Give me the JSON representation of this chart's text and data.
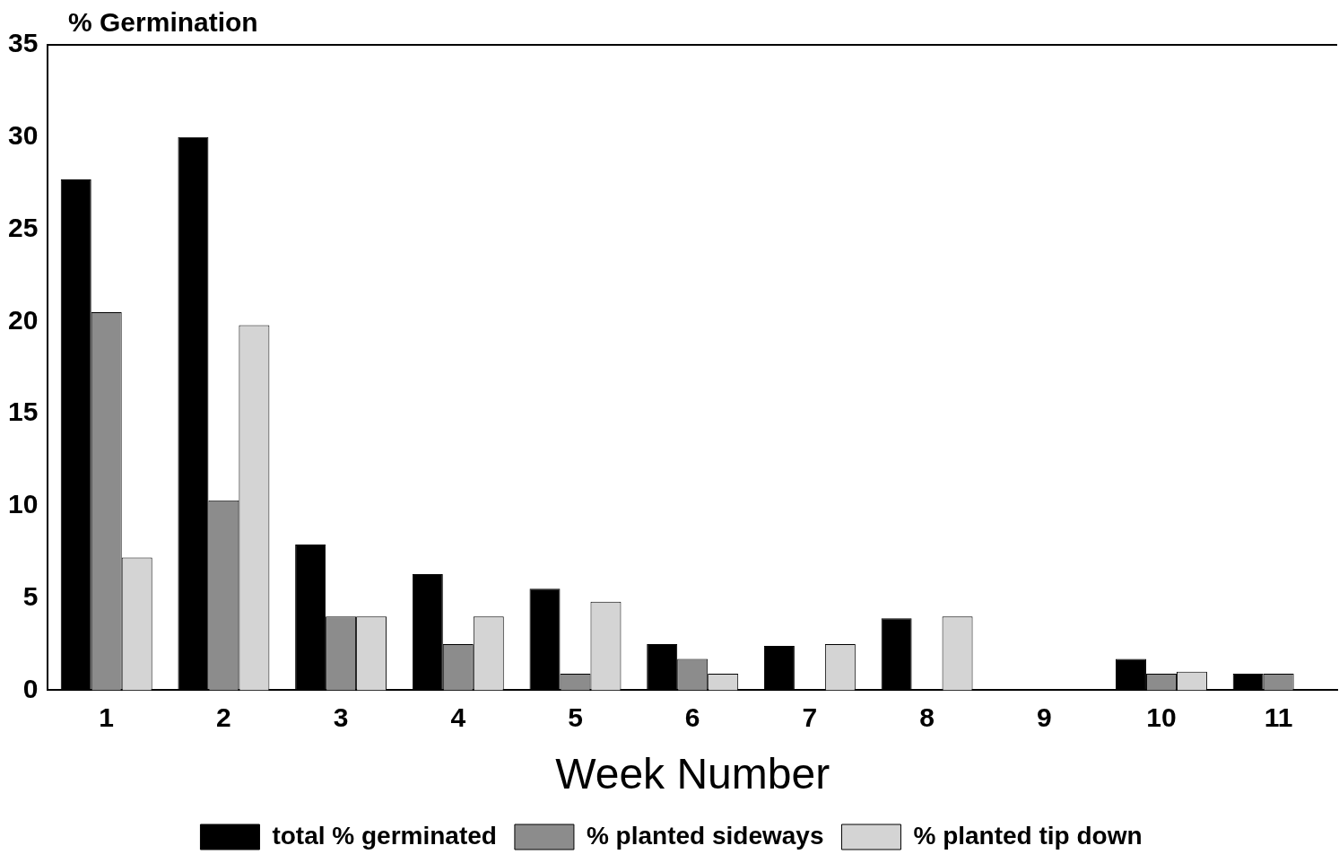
{
  "chart_data": {
    "type": "bar",
    "ylabel": "% Germination",
    "xlabel": "Week Number",
    "categories": [
      "1",
      "2",
      "3",
      "4",
      "5",
      "6",
      "7",
      "8",
      "9",
      "10",
      "11"
    ],
    "series": [
      {
        "name": "total % germinated",
        "color": "#000000",
        "values": [
          27.7,
          30,
          7.9,
          6.3,
          5.5,
          2.5,
          2.4,
          3.9,
          0,
          1.7,
          0.9
        ]
      },
      {
        "name": "% planted sideways",
        "color": "#8c8c8c",
        "values": [
          20.5,
          10.3,
          4,
          2.5,
          0.9,
          1.7,
          0,
          0,
          0,
          0.9,
          0.9
        ]
      },
      {
        "name": "% planted tip down",
        "color": "#d4d4d4",
        "values": [
          7.2,
          19.8,
          4,
          4,
          4.8,
          0.9,
          2.5,
          4,
          0,
          1,
          0
        ]
      }
    ],
    "ylim": [
      0,
      35
    ],
    "yticks": [
      0,
      5,
      10,
      15,
      20,
      25,
      30,
      35
    ],
    "grid": false,
    "legend": "bottom"
  }
}
